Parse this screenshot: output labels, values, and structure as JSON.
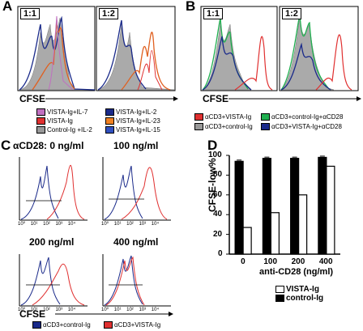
{
  "panel_labels": {
    "a": "A",
    "b": "B",
    "c": "C",
    "d": "D"
  },
  "panel_a": {
    "ratio_left": "1:1",
    "ratio_right": "1:2",
    "xlabel": "CFSE",
    "legend": [
      {
        "label": "VISTA-Ig+IL-7",
        "color": "#c070c0"
      },
      {
        "label": "VISTA-Ig+IL-2",
        "color": "#1a2a8a"
      },
      {
        "label": "VISTA-Ig",
        "color": "#e03030"
      },
      {
        "label": "VISTA-Ig+IL-23",
        "color": "#f08020"
      },
      {
        "label": "Control-Ig +IL-2",
        "color": "#999999"
      },
      {
        "label": "VISTA-Ig+IL-15",
        "color": "#3050c0"
      }
    ]
  },
  "panel_b": {
    "ratio_left": "1:1",
    "ratio_right": "1:2",
    "xlabel": "CFSE",
    "legend": [
      {
        "label": "αCD3+VISTA-Ig",
        "color": "#e03030"
      },
      {
        "label": "αCD3+control-Ig+αCD28",
        "color": "#20b050"
      },
      {
        "label": "αCD3+control-Ig",
        "color": "#999999"
      },
      {
        "label": "αCD3+VISTA-Ig+αCD28",
        "color": "#1a2a8a"
      }
    ]
  },
  "panel_c": {
    "title_prefix": "αCD28:",
    "conditions": [
      "0 ng/ml",
      "100 ng/ml",
      "200 ng/ml",
      "400 ng/ml"
    ],
    "ticks": [
      "10⁰",
      "10¹",
      "10²",
      "10³",
      "10⁴"
    ],
    "xlabel": "CFSE",
    "legend": [
      {
        "label": "αCD3+control-Ig",
        "color": "#1a2a8a"
      },
      {
        "label": "αCD3+VISTA-Ig",
        "color": "#e03030"
      }
    ]
  },
  "chart_data": {
    "type": "bar",
    "categories": [
      "0",
      "100",
      "200",
      "400"
    ],
    "series": [
      {
        "name": "control-Ig",
        "values": [
          94,
          97,
          97,
          98
        ],
        "color": "#000000"
      },
      {
        "name": "VISTA-Ig",
        "values": [
          27,
          42,
          60,
          89
        ],
        "color": "#ffffff"
      }
    ],
    "ylabel": "CFSE-low%",
    "xlabel": "anti-CD28 (ng/ml)",
    "ylim": [
      0,
      100
    ],
    "yticks": [
      "0",
      "20",
      "40",
      "60",
      "80",
      "100"
    ],
    "legend_placement": "bottom-right",
    "legend_order": [
      "VISTA-Ig",
      "control-Ig"
    ]
  }
}
